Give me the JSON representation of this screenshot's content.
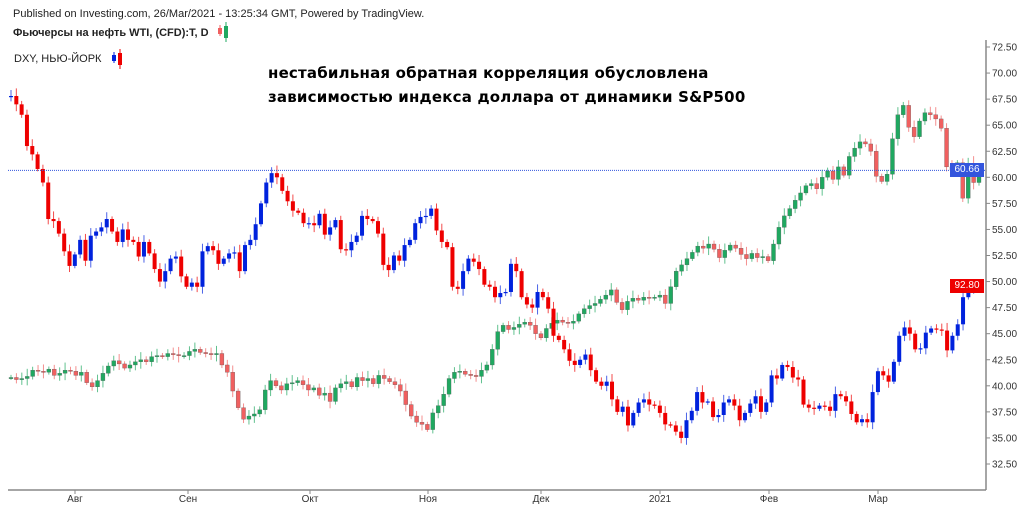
{
  "header": {
    "published": "Published on Investing.com, 26/Mar/2021 - 13:25:34 GMT, Powered by TradingView.",
    "title": "Фьючерсы на нефть WTI, (CFD):T, D",
    "second_symbol": "DXY, НЬЮ-ЙОРК"
  },
  "annotation": [
    "нестабильная обратная корреляция обусловлена",
    "зависимостью индекса доллара от динамики S&P500"
  ],
  "last_labels": {
    "oil": "60.66",
    "dxy": "92.80"
  },
  "colors": {
    "oil_up": "#1fa860",
    "oil_down": "#f06060",
    "dxy_up": "#0022dd",
    "dxy_down": "#ee0000",
    "price_line": "#3355dd"
  },
  "chart_data": {
    "type": "candlestick",
    "ylim": [
      30.5,
      73.5
    ],
    "y_ticks": [
      "72.50",
      "70.00",
      "67.50",
      "65.00",
      "62.50",
      "60.00",
      "57.50",
      "55.00",
      "52.50",
      "50.00",
      "47.50",
      "45.00",
      "42.50",
      "40.00",
      "37.50",
      "35.00",
      "32.50"
    ],
    "x_ticks": [
      "Авг",
      "Сен",
      "Окт",
      "Ноя",
      "Дек",
      "2021",
      "Фев",
      "Мар"
    ],
    "grid": false,
    "series": [
      {
        "name": "Фьючерсы на нефть WTI, (CFD):T, D",
        "closes": [
          40.8,
          40.6,
          40.7,
          40.9,
          41.5,
          41.4,
          41.3,
          41.6,
          41.0,
          41.2,
          41.5,
          41.4,
          41.0,
          41.3,
          40.3,
          39.9,
          40.5,
          41.2,
          41.9,
          42.4,
          42.1,
          41.7,
          42.0,
          42.3,
          42.5,
          42.3,
          42.8,
          42.9,
          42.8,
          43.1,
          43.0,
          42.9,
          42.9,
          43.3,
          43.5,
          43.2,
          43.1,
          43.0,
          43.1,
          42.0,
          41.3,
          39.5,
          37.9,
          36.8,
          37.1,
          37.3,
          37.7,
          39.6,
          40.5,
          40.0,
          39.6,
          40.2,
          40.3,
          40.5,
          40.1,
          39.6,
          39.8,
          39.1,
          39.3,
          38.5,
          39.8,
          40.2,
          40.4,
          39.9,
          40.8,
          40.5,
          40.7,
          40.2,
          41.0,
          40.7,
          40.4,
          40.1,
          39.5,
          38.2,
          37.1,
          36.5,
          36.3,
          35.8,
          37.4,
          38.1,
          39.2,
          40.7,
          41.3,
          41.4,
          41.1,
          41.0,
          40.9,
          41.5,
          42.0,
          43.5,
          45.2,
          45.8,
          45.4,
          45.6,
          45.9,
          46.1,
          45.8,
          45.0,
          44.6,
          45.5,
          46.0,
          46.3,
          46.1,
          46.0,
          46.2,
          46.9,
          47.4,
          47.7,
          47.9,
          48.3,
          48.7,
          49.2,
          48.0,
          47.3,
          48.1,
          48.4,
          48.2,
          48.5,
          48.4,
          48.5,
          48.7,
          47.9,
          49.5,
          51.0,
          51.6,
          52.2,
          52.8,
          53.4,
          53.2,
          53.6,
          53.1,
          52.3,
          53.0,
          53.5,
          53.2,
          52.6,
          52.2,
          52.7,
          52.3,
          52.4,
          52.0,
          53.6,
          55.2,
          56.3,
          57.0,
          57.8,
          58.5,
          59.2,
          59.4,
          58.9,
          60.0,
          60.6,
          59.8,
          61.0,
          60.2,
          62.0,
          62.8,
          63.4,
          63.2,
          62.5,
          60.1,
          59.6,
          60.3,
          63.7,
          66.0,
          66.9,
          64.8,
          63.9,
          65.4,
          66.2,
          66.0,
          65.6,
          64.7,
          61.0,
          60.7,
          61.4,
          58.0,
          61.3,
          59.5,
          60.66
        ]
      },
      {
        "name": "DXY, НЬЮ-ЙОРК",
        "closes": [
          67.8,
          67.0,
          66.0,
          63.0,
          62.2,
          60.8,
          59.5,
          56.0,
          55.8,
          54.6,
          52.9,
          51.5,
          52.6,
          54.0,
          52.0,
          54.4,
          54.8,
          55.2,
          56.0,
          54.8,
          53.8,
          55.0,
          54.0,
          53.8,
          52.4,
          53.8,
          52.7,
          51.2,
          50.0,
          51.0,
          52.2,
          52.4,
          50.5,
          49.5,
          49.9,
          49.5,
          52.9,
          53.4,
          53.0,
          51.7,
          52.2,
          52.7,
          52.8,
          51.0,
          53.5,
          54.0,
          55.5,
          57.5,
          59.5,
          60.4,
          60.0,
          58.7,
          57.7,
          56.8,
          56.6,
          55.6,
          55.6,
          55.4,
          56.5,
          54.5,
          55.2,
          55.9,
          53.1,
          53.0,
          53.8,
          54.4,
          56.3,
          56.0,
          55.8,
          54.6,
          51.6,
          51.1,
          52.5,
          52.0,
          53.5,
          54.0,
          55.6,
          56.2,
          56.3,
          57.0,
          54.9,
          53.8,
          53.3,
          49.5,
          49.3,
          51.0,
          52.2,
          51.9,
          51.2,
          49.7,
          49.5,
          48.5,
          48.9,
          49.0,
          51.7,
          51.0,
          48.5,
          47.8,
          47.5,
          49.0,
          48.5,
          47.4,
          44.8,
          44.4,
          43.5,
          42.4,
          42.0,
          42.5,
          43.0,
          41.5,
          40.4,
          40.0,
          40.4,
          38.7,
          37.5,
          38.0,
          36.2,
          37.4,
          38.4,
          38.7,
          38.2,
          38.1,
          37.4,
          36.3,
          36.2,
          35.6,
          35.0,
          36.7,
          37.6,
          39.4,
          38.4,
          38.5,
          37.0,
          37.2,
          38.4,
          38.7,
          38.1,
          36.7,
          37.4,
          38.3,
          39.0,
          37.5,
          38.4,
          41.0,
          40.7,
          42.0,
          41.8,
          40.8,
          40.6,
          38.2,
          37.9,
          37.8,
          38.1,
          38.0,
          37.6,
          39.2,
          39.0,
          38.5,
          37.3,
          36.5,
          36.8,
          36.5,
          39.4,
          41.4,
          41.0,
          40.4,
          42.3,
          44.8,
          45.6,
          45.0,
          43.5,
          43.6,
          45.1,
          45.5,
          45.4,
          45.3,
          43.4,
          44.8,
          45.9,
          48.5,
          49.2,
          49.6,
          49.6
        ]
      }
    ]
  }
}
